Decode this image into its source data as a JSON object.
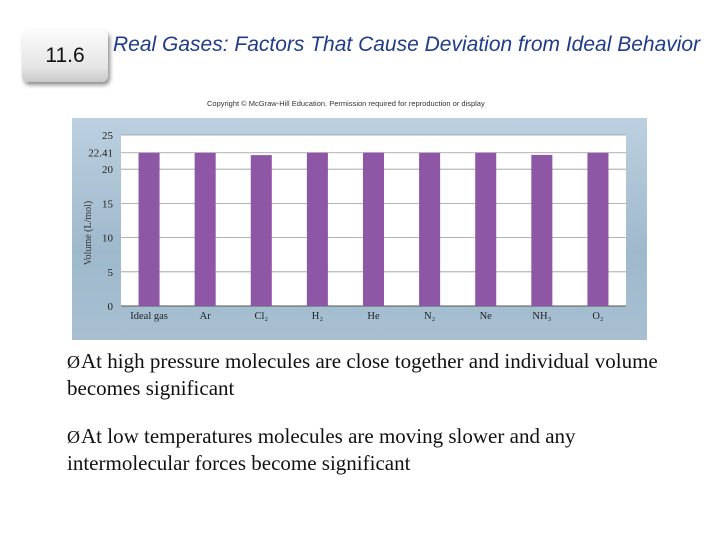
{
  "slide": {
    "section_number": "11.6",
    "title": "Real Gases: Factors That Cause Deviation from Ideal Behavior",
    "copyright": "Copyright © McGraw-Hill Education. Permission required for reproduction or display",
    "bullets": [
      "At high pressure molecules are close together and individual volume becomes significant",
      "At low temperatures molecules are moving slower and any intermolecular forces become significant"
    ],
    "bullet_marker": "Ø"
  },
  "chart_data": {
    "type": "bar",
    "categories": [
      "Ideal gas",
      "Ar",
      "Cl₂",
      "H₂",
      "He",
      "N₂",
      "Ne",
      "NH₃",
      "O₂"
    ],
    "values": [
      22.41,
      22.4,
      22.06,
      22.43,
      22.44,
      22.4,
      22.42,
      22.09,
      22.4
    ],
    "title": "",
    "xlabel": "",
    "ylabel": "Volume (L/mol)",
    "ylim": [
      0,
      25
    ],
    "yticks": [
      0,
      5,
      10,
      15,
      20,
      25
    ],
    "reference_tick": {
      "value": 22.41,
      "label": "22.41"
    },
    "grid": true,
    "colors": {
      "bar": "#8e57a6",
      "panel": "#afc5d6",
      "plot_bg": "#ffffff",
      "grid": "#9a9a9a"
    }
  }
}
